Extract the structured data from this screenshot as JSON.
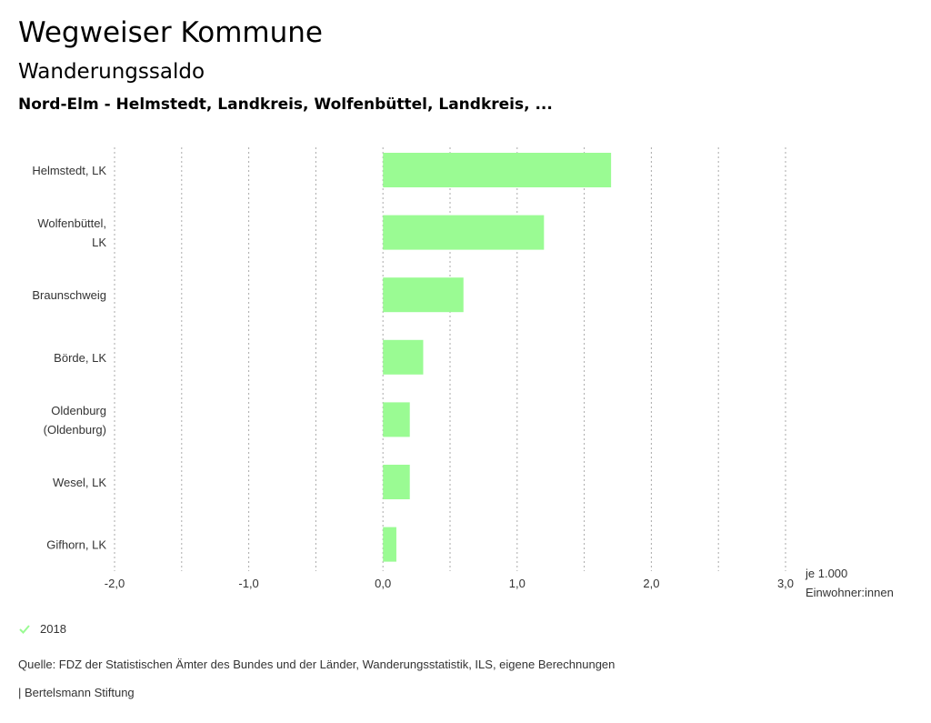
{
  "header": {
    "title": "Wegweiser Kommune",
    "subtitle": "Wanderungssaldo",
    "region": "Nord-Elm - Helmstedt, Landkreis, Wolfenbüttel, Landkreis, ..."
  },
  "chart_data": {
    "type": "bar",
    "orientation": "horizontal",
    "categories": [
      [
        "Helmstedt, LK"
      ],
      [
        "Wolfenbüttel,",
        "LK"
      ],
      [
        "Braunschweig"
      ],
      [
        "Börde, LK"
      ],
      [
        "Oldenburg",
        "(Oldenburg)"
      ],
      [
        "Wesel, LK"
      ],
      [
        "Gifhorn, LK"
      ]
    ],
    "series": [
      {
        "name": "2018",
        "values": [
          1.7,
          1.2,
          0.6,
          0.3,
          0.2,
          0.2,
          0.1
        ]
      }
    ],
    "xlim": [
      -2.0,
      3.0
    ],
    "ticks": [
      -2.0,
      -1.0,
      0.0,
      1.0,
      2.0,
      3.0
    ],
    "tick_labels": [
      "-2,0",
      "-1,0",
      "0,0",
      "1,0",
      "2,0",
      "3,0"
    ],
    "minor_gridlines": [
      -1.5,
      -0.5,
      0.5,
      1.5,
      2.5
    ],
    "unit_label": [
      "je 1.000",
      "Einwohner:innen"
    ],
    "grid": true
  },
  "legend": {
    "label": "2018",
    "color": "#9afb93"
  },
  "footer": {
    "source": "Quelle: FDZ der Statistischen Ämter des Bundes und der Länder, Wanderungsstatistik, ILS, eigene Berechnungen",
    "credit": "| Bertelsmann Stiftung"
  },
  "colors": {
    "bar": "#9afb93",
    "grid": "#aaaaaa",
    "axis_text": "#333333"
  }
}
